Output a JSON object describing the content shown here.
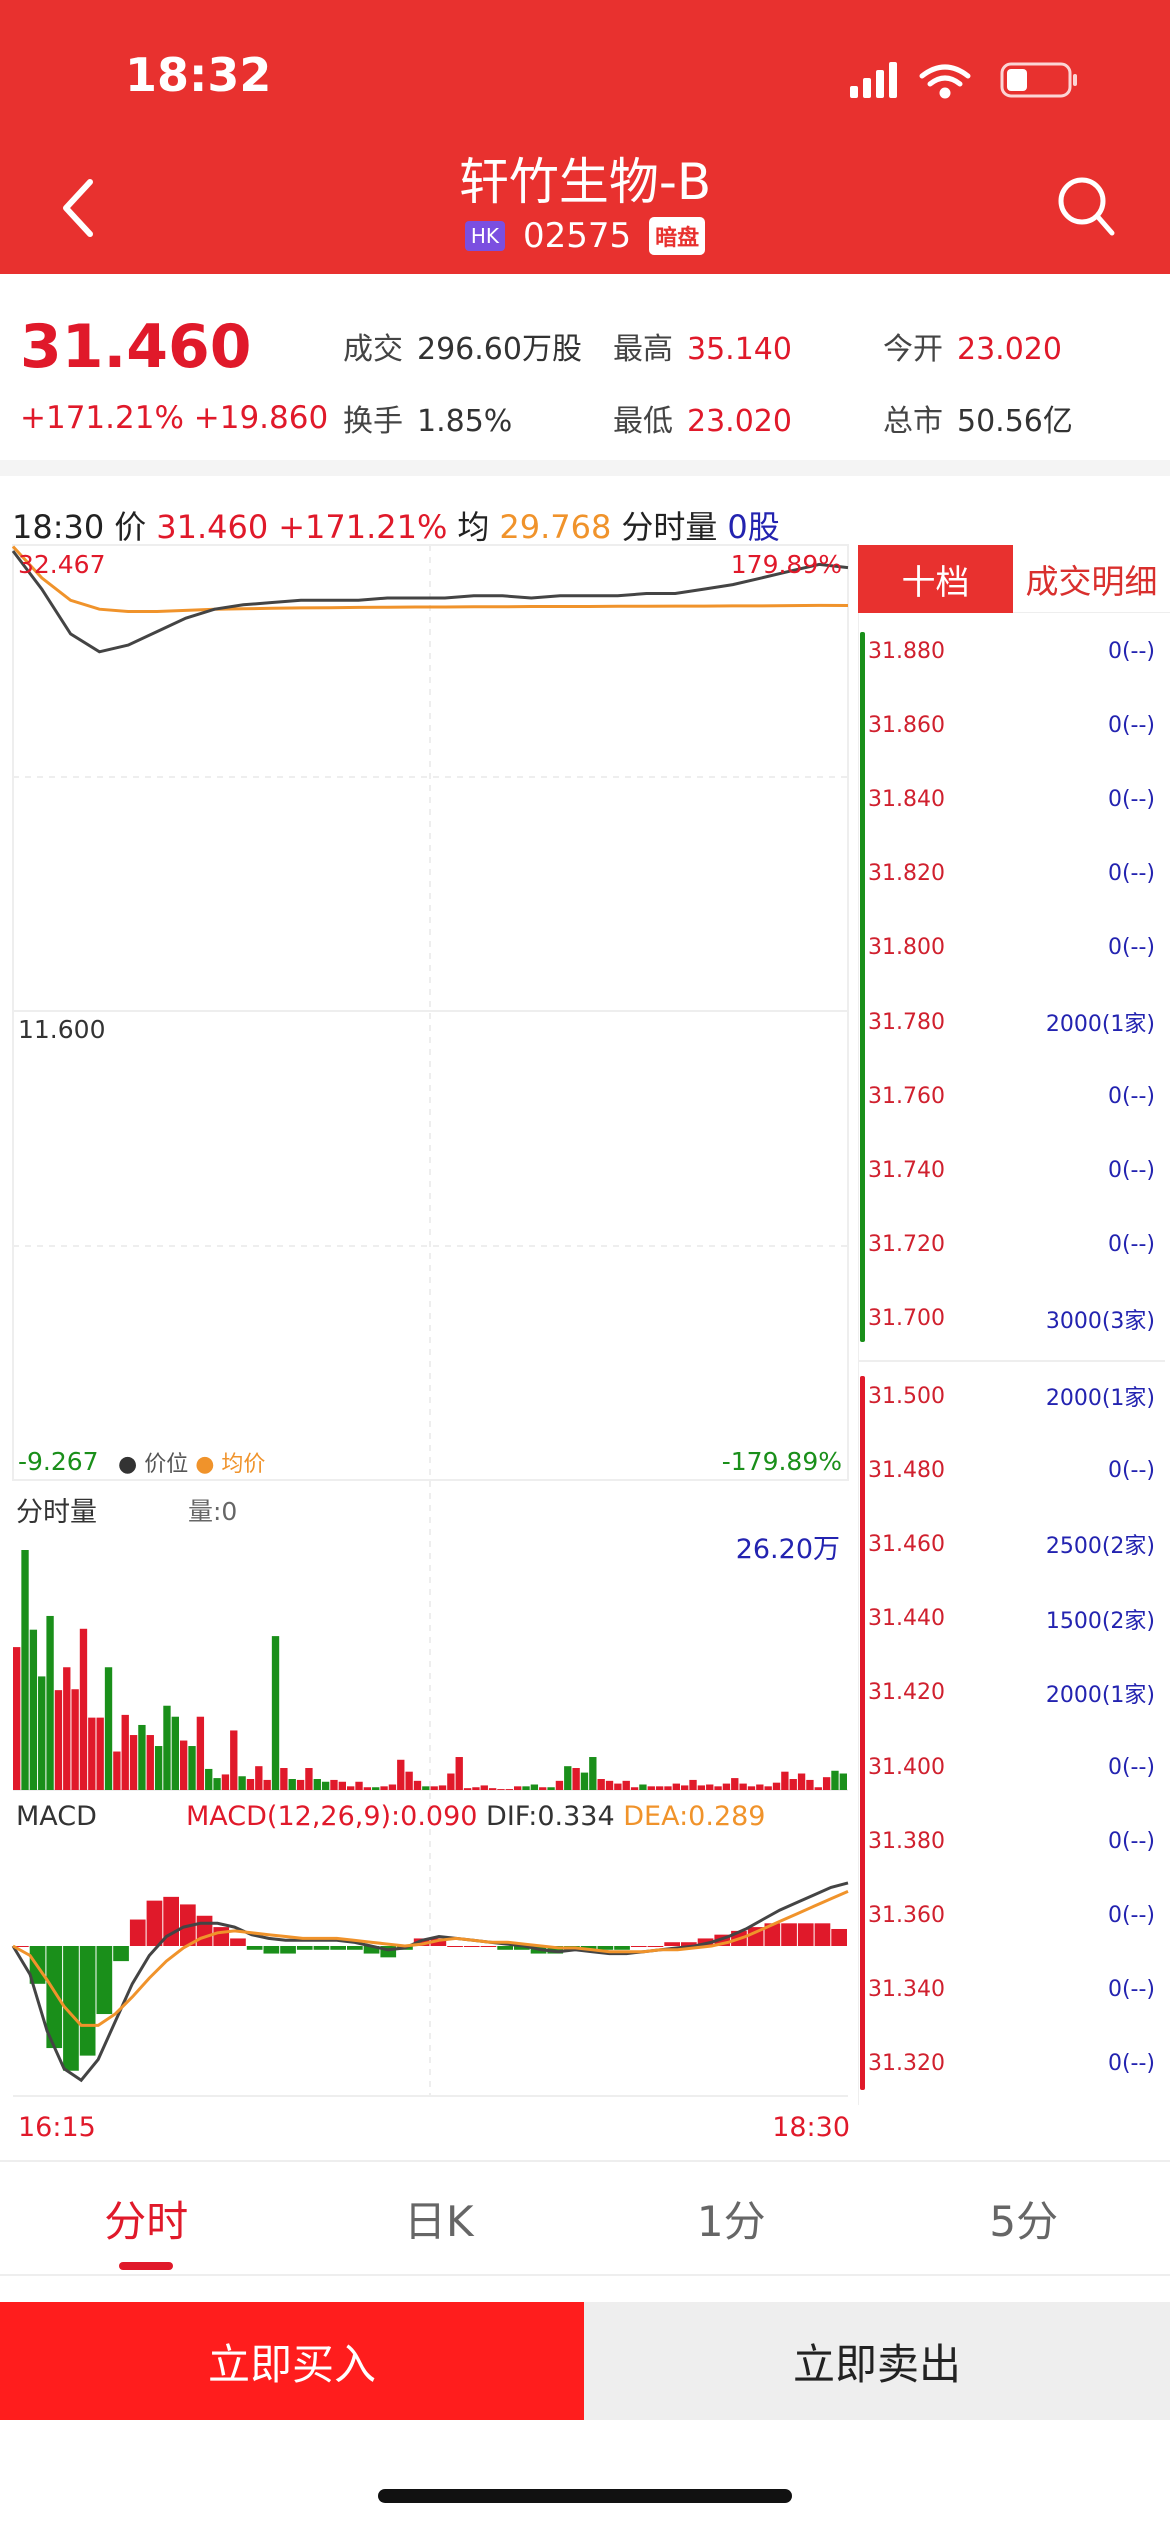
{
  "status": {
    "time": "18:32",
    "battery_level": 0.35
  },
  "header": {
    "title": "轩竹生物-B",
    "market_badge": "HK",
    "code": "02575",
    "dark_badge": "暗盘",
    "back_icon": "chevron-left-icon",
    "search_icon": "search-icon"
  },
  "quote": {
    "price": "31.460",
    "change_pct": "+171.21%",
    "change": "+19.860",
    "items": [
      {
        "label": "成交",
        "value": "296.60万股",
        "color": "#333333"
      },
      {
        "label": "最高",
        "value": "35.140",
        "color": "#e0192a"
      },
      {
        "label": "今开",
        "value": "23.020",
        "color": "#e0192a"
      },
      {
        "label": "换手",
        "value": "1.85%",
        "color": "#333333"
      },
      {
        "label": "最低",
        "value": "23.020",
        "color": "#e0192a"
      },
      {
        "label": "总市",
        "value": "50.56亿",
        "color": "#333333"
      }
    ]
  },
  "chart_head": {
    "time": "18:30",
    "price_label": "价",
    "price": "31.460",
    "pct": "+171.21%",
    "avg_label": "均",
    "avg": "29.768",
    "vol_label": "分时量",
    "vol": "0股"
  },
  "price_chart": {
    "top_price": "32.467",
    "top_pct": "179.89%",
    "mid_price": "11.600",
    "bottom_price": "-9.267",
    "bottom_pct": "-179.89%",
    "legend_price": "价位",
    "legend_avg": "均价",
    "ymax": 32.467,
    "ymin": -9.267,
    "price": [
      32.2,
      30.5,
      28.5,
      27.7,
      28.0,
      28.6,
      29.2,
      29.6,
      29.8,
      29.9,
      30.0,
      30.0,
      30.0,
      30.1,
      30.1,
      30.1,
      30.2,
      30.2,
      30.1,
      30.2,
      30.2,
      30.2,
      30.3,
      30.3,
      30.5,
      30.7,
      31.0,
      31.3,
      31.6,
      31.46
    ],
    "avg": [
      32.4,
      31.0,
      30.0,
      29.6,
      29.5,
      29.5,
      29.55,
      29.6,
      29.62,
      29.64,
      29.66,
      29.67,
      29.68,
      29.69,
      29.7,
      29.7,
      29.71,
      29.71,
      29.72,
      29.72,
      29.72,
      29.73,
      29.73,
      29.74,
      29.74,
      29.75,
      29.75,
      29.76,
      29.77,
      29.768
    ]
  },
  "volume_chart": {
    "title": "分时量",
    "current_label": "量:0",
    "max_label": "26.20万",
    "max": 26.2,
    "values": [
      15.6,
      26.2,
      17.5,
      12.4,
      19.0,
      10.9,
      13.4,
      11.0,
      17.6,
      7.9,
      7.9,
      13.4,
      4.2,
      8.2,
      6.0,
      7.1,
      6.0,
      4.8,
      9.2,
      8.0,
      5.4,
      4.8,
      8.0,
      2.3,
      1.3,
      1.7,
      6.5,
      1.5,
      1.2,
      2.6,
      1.1,
      16.8,
      2.4,
      1.2,
      1.1,
      2.4,
      1.2,
      0.9,
      1.1,
      0.9,
      0.4,
      0.9,
      0.3,
      0.3,
      0.4,
      0.6,
      3.3,
      2.0,
      1.0,
      0.4,
      0.4,
      0.5,
      1.8,
      3.6,
      0.2,
      0.3,
      0.5,
      0.2,
      0.1,
      0.1,
      0.4,
      0.4,
      0.6,
      0.3,
      0.3,
      1.0,
      2.6,
      2.4,
      1.9,
      3.6,
      1.2,
      1.0,
      0.7,
      1.0,
      0.3,
      0.6,
      0.4,
      0.4,
      0.4,
      0.7,
      0.5,
      1.1,
      0.5,
      0.6,
      0.4,
      0.7,
      1.3,
      0.7,
      0.4,
      0.6,
      0.4,
      0.8,
      2.0,
      1.2,
      1.8,
      1.1,
      0.3,
      1.4,
      2.1,
      1.8
    ],
    "directions": "rggggrrrrrrgrrrgrgggrgrggrrgrrrgrgrrggrrrrrgrrrrrgrrrrrrrrrrrggrgrgrggrrrrrgrrrrrrrrrrrrrrrrrrrrrrgg"
  },
  "macd_chart": {
    "title": "MACD",
    "macd_label": "MACD(12,26,9):0.090",
    "dif_label": "DIF:0.334",
    "dea_label": "DEA:0.289",
    "dif": [
      0,
      -0.15,
      -0.45,
      -0.65,
      -0.71,
      -0.6,
      -0.4,
      -0.2,
      -0.05,
      0.05,
      0.1,
      0.12,
      0.12,
      0.1,
      0.06,
      0.04,
      0.03,
      0.03,
      0.03,
      0.03,
      0.02,
      0.0,
      -0.02,
      -0.01,
      0.03,
      0.05,
      0.04,
      0.03,
      0.02,
      0.01,
      0.0,
      -0.02,
      -0.03,
      -0.02,
      -0.03,
      -0.04,
      -0.04,
      -0.03,
      -0.02,
      -0.01,
      0.0,
      0.02,
      0.05,
      0.09,
      0.14,
      0.19,
      0.23,
      0.27,
      0.31,
      0.334
    ],
    "dea": [
      0,
      -0.05,
      -0.18,
      -0.32,
      -0.42,
      -0.42,
      -0.36,
      -0.27,
      -0.17,
      -0.08,
      -0.01,
      0.04,
      0.07,
      0.08,
      0.07,
      0.06,
      0.05,
      0.04,
      0.04,
      0.04,
      0.03,
      0.02,
      0.01,
      0.0,
      0.01,
      0.03,
      0.04,
      0.03,
      0.02,
      0.02,
      0.01,
      0.0,
      -0.01,
      -0.01,
      -0.02,
      -0.03,
      -0.03,
      -0.03,
      -0.02,
      -0.02,
      -0.01,
      0.0,
      0.02,
      0.05,
      0.09,
      0.13,
      0.17,
      0.21,
      0.25,
      0.289
    ]
  },
  "time_axis": {
    "start": "16:15",
    "end": "18:30"
  },
  "order_book": {
    "tab_ten": "十档",
    "tab_detail": "成交明细",
    "asks": [
      {
        "price": "31.880",
        "vol": "0(--)"
      },
      {
        "price": "31.860",
        "vol": "0(--)"
      },
      {
        "price": "31.840",
        "vol": "0(--)"
      },
      {
        "price": "31.820",
        "vol": "0(--)"
      },
      {
        "price": "31.800",
        "vol": "0(--)"
      },
      {
        "price": "31.780",
        "vol": "2000(1家)"
      },
      {
        "price": "31.760",
        "vol": "0(--)"
      },
      {
        "price": "31.740",
        "vol": "0(--)"
      },
      {
        "price": "31.720",
        "vol": "0(--)"
      },
      {
        "price": "31.700",
        "vol": "3000(3家)"
      }
    ],
    "bids": [
      {
        "price": "31.500",
        "vol": "2000(1家)"
      },
      {
        "price": "31.480",
        "vol": "0(--)"
      },
      {
        "price": "31.460",
        "vol": "2500(2家)"
      },
      {
        "price": "31.440",
        "vol": "1500(2家)"
      },
      {
        "price": "31.420",
        "vol": "2000(1家)"
      },
      {
        "price": "31.400",
        "vol": "0(--)"
      },
      {
        "price": "31.380",
        "vol": "0(--)"
      },
      {
        "price": "31.360",
        "vol": "0(--)"
      },
      {
        "price": "31.340",
        "vol": "0(--)"
      },
      {
        "price": "31.320",
        "vol": "0(--)"
      }
    ]
  },
  "tabs": [
    {
      "label": "分时",
      "active": true
    },
    {
      "label": "日K"
    },
    {
      "label": "1分"
    },
    {
      "label": "5分"
    }
  ],
  "actions": {
    "buy": "立即买入",
    "sell": "立即卖出"
  },
  "colors": {
    "brand": "#e8312f",
    "up": "#e0192a",
    "down": "#1a8f1a",
    "avg": "#f0932b",
    "price_line": "#444444"
  }
}
